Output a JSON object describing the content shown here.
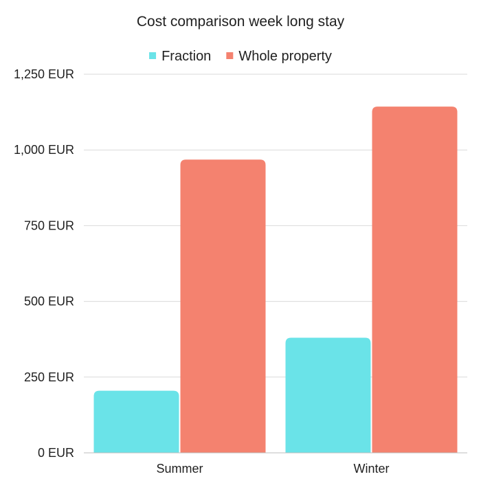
{
  "chart_data": {
    "type": "bar",
    "title": "Cost comparison week long stay",
    "xlabel": "",
    "ylabel": "",
    "categories": [
      "Summer",
      "Winter"
    ],
    "series": [
      {
        "name": "Fraction",
        "color": "#6ae3e8",
        "values": [
          205,
          380
        ]
      },
      {
        "name": "Whole property",
        "color": "#f4826f",
        "values": [
          968,
          1143
        ]
      }
    ],
    "ylim": [
      0,
      1250
    ],
    "yticks": [
      {
        "value": 0,
        "label": "0 EUR"
      },
      {
        "value": 250,
        "label": "250 EUR"
      },
      {
        "value": 500,
        "label": "500 EUR"
      },
      {
        "value": 750,
        "label": "750 EUR"
      },
      {
        "value": 1000,
        "label": "1,000 EUR"
      },
      {
        "value": 1250,
        "label": "1,250 EUR"
      }
    ],
    "grid": true,
    "legend_position": "top"
  }
}
